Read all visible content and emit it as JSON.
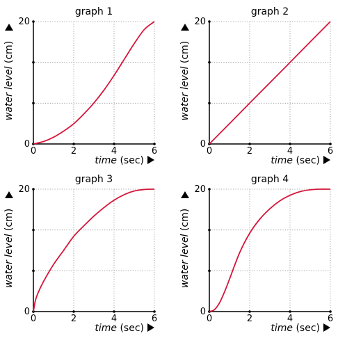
{
  "chart_data": [
    {
      "type": "line",
      "title": "graph 1",
      "xlabel_italic": "time",
      "xlabel_unit": "(sec)",
      "ylabel_italic": "water level",
      "ylabel_unit": "(cm)",
      "xlim": [
        0,
        6
      ],
      "ylim": [
        0,
        20
      ],
      "x_ticks": [
        "0",
        "2",
        "4",
        "6"
      ],
      "y_ticks": [
        "0",
        "20"
      ],
      "grid": true,
      "series": [
        {
          "x": [
            0,
            0.5,
            1,
            1.5,
            2,
            2.5,
            3,
            3.5,
            4,
            4.5,
            5,
            5.5,
            6
          ],
          "y": [
            0,
            0.4,
            1.1,
            2.1,
            3.3,
            4.9,
            6.7,
            8.8,
            11.2,
            13.8,
            16.4,
            18.7,
            20
          ]
        }
      ]
    },
    {
      "type": "line",
      "title": "graph 2",
      "xlabel_italic": "time",
      "xlabel_unit": "(sec)",
      "ylabel_italic": "water level",
      "ylabel_unit": "(cm)",
      "xlim": [
        0,
        6
      ],
      "ylim": [
        0,
        20
      ],
      "x_ticks": [
        "0",
        "2",
        "4",
        "6"
      ],
      "y_ticks": [
        "0",
        "20"
      ],
      "grid": true,
      "series": [
        {
          "x": [
            0,
            1,
            2,
            3,
            4,
            5,
            6
          ],
          "y": [
            0,
            3.33,
            6.67,
            10,
            13.33,
            16.67,
            20
          ]
        }
      ]
    },
    {
      "type": "line",
      "title": "graph 3",
      "xlabel_italic": "time",
      "xlabel_unit": "(sec)",
      "ylabel_italic": "water level",
      "ylabel_unit": "(cm)",
      "xlim": [
        0,
        6
      ],
      "ylim": [
        0,
        20
      ],
      "x_ticks": [
        "0",
        "2",
        "4",
        "6"
      ],
      "y_ticks": [
        "0",
        "20"
      ],
      "grid": true,
      "series": [
        {
          "x": [
            0,
            0.1,
            0.25,
            0.5,
            1,
            1.5,
            2,
            2.5,
            3,
            3.5,
            4,
            4.5,
            5,
            5.5,
            6
          ],
          "y": [
            0,
            1.8,
            3.2,
            4.9,
            7.7,
            10.0,
            12.3,
            14.0,
            15.6,
            17.0,
            18.2,
            19.1,
            19.7,
            19.95,
            20
          ]
        }
      ]
    },
    {
      "type": "line",
      "title": "graph 4",
      "xlabel_italic": "time",
      "xlabel_unit": "(sec)",
      "ylabel_italic": "water level",
      "ylabel_unit": "(cm)",
      "xlim": [
        0,
        6
      ],
      "ylim": [
        0,
        20
      ],
      "x_ticks": [
        "0",
        "2",
        "4",
        "6"
      ],
      "y_ticks": [
        "0",
        "20"
      ],
      "grid": true,
      "series": [
        {
          "x": [
            0,
            0.25,
            0.5,
            0.75,
            1,
            1.5,
            2,
            2.5,
            3,
            3.5,
            4,
            4.5,
            5,
            5.5,
            6
          ],
          "y": [
            0,
            0.3,
            1.4,
            3.2,
            5.3,
            9.6,
            12.8,
            15.1,
            16.8,
            18.1,
            19.0,
            19.6,
            19.9,
            20,
            20
          ]
        }
      ]
    }
  ],
  "colors": {
    "curve": "#d6163a",
    "axis": "#000000",
    "grid": "#8a8a8a"
  }
}
